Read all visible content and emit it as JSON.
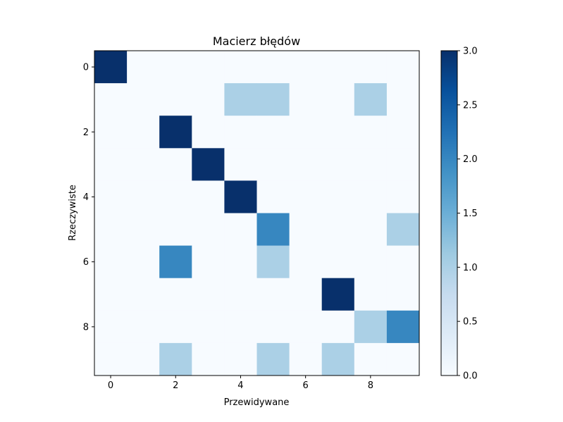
{
  "chart_data": {
    "type": "heatmap",
    "title": "Macierz błędów",
    "xlabel": "Przewidywane",
    "ylabel": "Rzeczywiste",
    "x_ticks": [
      "0",
      "2",
      "4",
      "6",
      "8"
    ],
    "y_ticks": [
      "0",
      "2",
      "4",
      "6",
      "8"
    ],
    "colormap": "Blues",
    "vmin": 0,
    "vmax": 3,
    "colorbar_ticks": [
      "0.0",
      "0.5",
      "1.0",
      "1.5",
      "2.0",
      "2.5",
      "3.0"
    ],
    "colorbar_tick_values": [
      0,
      0.5,
      1,
      1.5,
      2,
      2.5,
      3
    ],
    "matrix": [
      [
        3,
        0,
        0,
        0,
        0,
        0,
        0,
        0,
        0,
        0
      ],
      [
        0,
        0,
        0,
        0,
        1,
        1,
        0,
        0,
        1,
        0
      ],
      [
        0,
        0,
        3,
        0,
        0,
        0,
        0,
        0,
        0,
        0
      ],
      [
        0,
        0,
        0,
        3,
        0,
        0,
        0,
        0,
        0,
        0
      ],
      [
        0,
        0,
        0,
        0,
        3,
        0,
        0,
        0,
        0,
        0
      ],
      [
        0,
        0,
        0,
        0,
        0,
        2,
        0,
        0,
        0,
        1
      ],
      [
        0,
        0,
        2,
        0,
        0,
        1,
        0,
        0,
        0,
        0
      ],
      [
        0,
        0,
        0,
        0,
        0,
        0,
        0,
        3,
        0,
        0
      ],
      [
        0,
        0,
        0,
        0,
        0,
        0,
        0,
        0,
        1,
        2
      ],
      [
        0,
        0,
        1,
        0,
        0,
        1,
        0,
        1,
        0,
        0
      ]
    ]
  }
}
